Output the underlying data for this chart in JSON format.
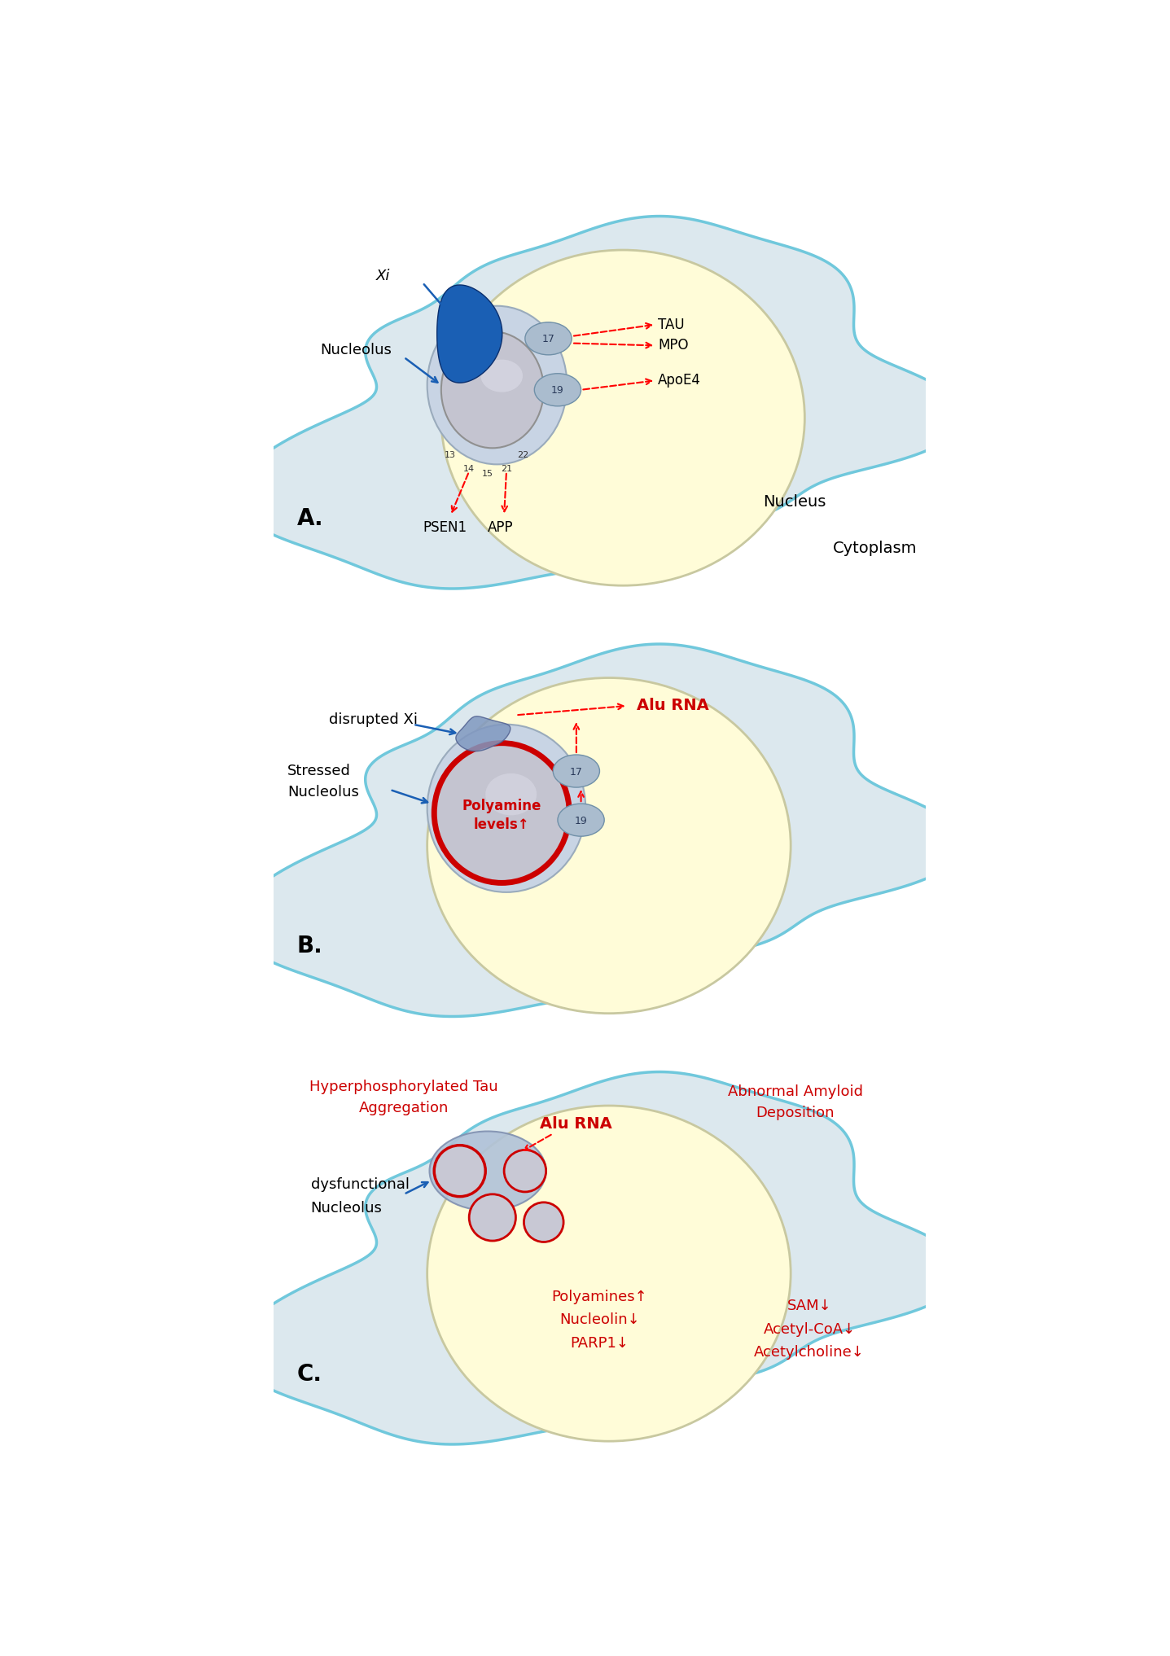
{
  "colors": {
    "red": "#cc0000",
    "blue": "#1a5fb4",
    "cell_outline": "#70c8dc",
    "nucleus_yellow": "#fffcd0",
    "nucleolus_gray": "#c0c0cc",
    "nuc_shell_blue": "#c0cce0",
    "chrom_blue": "#9ab0cc",
    "chrom_border": "#6080a0",
    "xi_blue": "#1a5fb4",
    "xi_blue2": "#3a70c4",
    "bg_white": "#ffffff",
    "cell_fill": "#dce8ee"
  },
  "panel_A": {
    "label": "A."
  },
  "panel_B": {
    "label": "B."
  },
  "panel_C": {
    "label": "C."
  }
}
